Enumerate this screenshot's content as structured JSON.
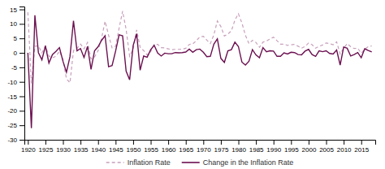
{
  "chart_data": {
    "type": "line",
    "x": [
      1920,
      1921,
      1922,
      1923,
      1924,
      1925,
      1926,
      1927,
      1928,
      1929,
      1930,
      1931,
      1932,
      1933,
      1934,
      1935,
      1936,
      1937,
      1938,
      1939,
      1940,
      1941,
      1942,
      1943,
      1944,
      1945,
      1946,
      1947,
      1948,
      1949,
      1950,
      1951,
      1952,
      1953,
      1954,
      1955,
      1956,
      1957,
      1958,
      1959,
      1960,
      1961,
      1962,
      1963,
      1964,
      1965,
      1966,
      1967,
      1968,
      1969,
      1970,
      1971,
      1972,
      1973,
      1974,
      1975,
      1976,
      1977,
      1978,
      1979,
      1980,
      1981,
      1982,
      1983,
      1984,
      1985,
      1986,
      1987,
      1988,
      1989,
      1990,
      1991,
      1992,
      1993,
      1994,
      1995,
      1996,
      1997,
      1998,
      1999,
      2000,
      2001,
      2002,
      2003,
      2004,
      2005,
      2006,
      2007,
      2008,
      2009,
      2010,
      2011,
      2012,
      2013,
      2014,
      2015,
      2016,
      2017,
      2018
    ],
    "series": [
      {
        "name": "Inflation Rate",
        "color": "#c8a0bc",
        "line_style": "dashed",
        "values": [
          14.0,
          -10.5,
          2.3,
          2.4,
          0.0,
          2.4,
          -1.1,
          -1.7,
          -1.2,
          0.6,
          -2.3,
          -9.0,
          -10.3,
          0.8,
          1.5,
          3.0,
          1.4,
          3.6,
          -2.1,
          -1.4,
          0.7,
          5.0,
          10.9,
          6.1,
          1.7,
          2.3,
          8.5,
          14.4,
          8.1,
          -1.2,
          1.3,
          7.9,
          1.9,
          0.8,
          -0.7,
          0.4,
          3.0,
          2.9,
          1.8,
          1.7,
          1.4,
          1.1,
          1.2,
          1.2,
          1.3,
          1.6,
          2.9,
          3.1,
          4.2,
          5.5,
          5.7,
          4.4,
          3.2,
          6.2,
          11.0,
          9.1,
          5.8,
          6.5,
          7.6,
          11.3,
          13.5,
          10.3,
          6.1,
          3.2,
          4.3,
          3.6,
          1.9,
          3.7,
          4.1,
          4.8,
          5.4,
          4.2,
          3.0,
          3.0,
          2.6,
          2.8,
          2.9,
          2.3,
          1.6,
          2.2,
          3.4,
          2.8,
          1.6,
          2.3,
          2.7,
          3.4,
          3.2,
          2.8,
          3.8,
          -0.4,
          1.6,
          3.2,
          2.1,
          1.5,
          1.6,
          -0.1,
          1.3,
          2.1,
          2.4
        ]
      },
      {
        "name": "Change in the Inflation Rate",
        "color": "#6b1050",
        "line_style": "solid",
        "values": [
          0.0,
          -26.0,
          13.0,
          0.1,
          -2.4,
          2.4,
          -3.5,
          -0.6,
          0.5,
          1.8,
          -2.9,
          -6.7,
          -1.3,
          11.1,
          0.7,
          1.5,
          -1.6,
          2.2,
          -5.7,
          0.7,
          2.1,
          4.3,
          5.9,
          -4.8,
          -4.4,
          0.6,
          6.2,
          5.9,
          -6.3,
          -9.3,
          2.5,
          6.6,
          -6.0,
          -1.1,
          -1.5,
          1.1,
          2.6,
          -0.1,
          -1.1,
          -0.1,
          -0.3,
          -0.3,
          0.1,
          0.0,
          0.1,
          0.3,
          1.3,
          0.2,
          1.1,
          1.3,
          0.2,
          -1.3,
          -1.2,
          3.0,
          4.8,
          -1.9,
          -3.3,
          0.7,
          1.1,
          3.7,
          2.2,
          -3.2,
          -4.2,
          -2.9,
          1.1,
          -0.7,
          -1.7,
          1.8,
          0.4,
          0.7,
          0.6,
          -1.2,
          -1.2,
          0.0,
          -0.4,
          0.2,
          0.1,
          -0.6,
          -0.7,
          0.6,
          1.2,
          -0.6,
          -1.2,
          0.7,
          0.4,
          0.7,
          -0.2,
          -0.4,
          1.0,
          -4.2,
          2.0,
          1.6,
          -1.1,
          -0.6,
          0.1,
          -1.7,
          1.4,
          0.8,
          0.3
        ]
      }
    ],
    "xlim": [
      1919,
      2019
    ],
    "ylim": [
      -30,
      16
    ],
    "xticks": [
      1920,
      1925,
      1930,
      1935,
      1940,
      1945,
      1950,
      1955,
      1960,
      1965,
      1970,
      1975,
      1980,
      1985,
      1990,
      1995,
      2000,
      2005,
      2010,
      2015
    ],
    "yticks": [
      -30,
      -25,
      -20,
      -15,
      -10,
      -5,
      0,
      5,
      10,
      15
    ],
    "grid": false,
    "legend": "bottom"
  }
}
